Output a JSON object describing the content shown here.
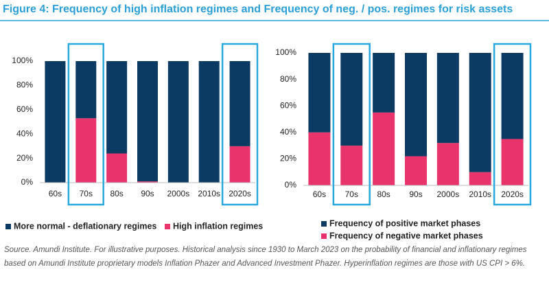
{
  "title": "Figure 4: Frequency of high inflation regimes and Frequency of neg. / pos. regimes for risk assets",
  "chart_data": [
    {
      "type": "bar",
      "stacked": true,
      "categories": [
        "60s",
        "70s",
        "80s",
        "90s",
        "2000s",
        "2010s",
        "2020s"
      ],
      "series": [
        {
          "name": "More normal - deflationary regimes",
          "color": "#0b3a63",
          "values": [
            100,
            47,
            76,
            99,
            100,
            100,
            70
          ]
        },
        {
          "name": "High inflation regimes",
          "color": "#e8336b",
          "values": [
            0,
            53,
            24,
            1,
            0,
            0,
            30
          ]
        }
      ],
      "ylim": [
        0,
        100
      ],
      "yticks": [
        {
          "value": 0,
          "label": "0%"
        },
        {
          "value": 20,
          "label": "20%"
        },
        {
          "value": 40,
          "label": "40%"
        },
        {
          "value": 60,
          "label": "60%"
        },
        {
          "value": 80,
          "label": "80%"
        },
        {
          "value": 100,
          "label": "100%"
        }
      ],
      "highlight": [
        1,
        6
      ],
      "highlight_color": "#29a8e0"
    },
    {
      "type": "bar",
      "stacked": true,
      "categories": [
        "60s",
        "70s",
        "80s",
        "90s",
        "2000s",
        "2010s",
        "2020s"
      ],
      "series": [
        {
          "name": "Frequency of positive market phases",
          "color": "#0b3a63",
          "values": [
            60,
            70,
            45,
            78,
            68,
            90,
            65
          ]
        },
        {
          "name": "Frequency of negative market phases",
          "color": "#e8336b",
          "values": [
            40,
            30,
            55,
            22,
            32,
            10,
            35
          ]
        }
      ],
      "ylim": [
        0,
        100
      ],
      "yticks": [
        {
          "value": 0,
          "label": "0%"
        },
        {
          "value": 20,
          "label": "20%"
        },
        {
          "value": 40,
          "label": "40%"
        },
        {
          "value": 60,
          "label": "60%"
        },
        {
          "value": 80,
          "label": "80%"
        },
        {
          "value": 100,
          "label": "100%"
        }
      ],
      "highlight": [
        1,
        6
      ],
      "highlight_color": "#29a8e0"
    }
  ],
  "source": "Source. Amundi Institute. For illustrative purposes. Historical analysis since 1930 to March 2023 on the probability of financial and inflationary regimes based on Amundi Institute proprietary models Inflation Phazer and Advanced Investment Phazer. Hyperinflation regimes are those with US CPI > 6%."
}
